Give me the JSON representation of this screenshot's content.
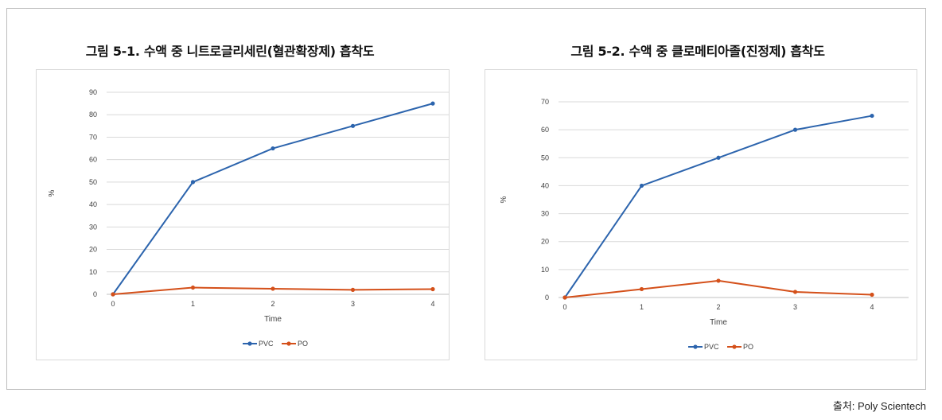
{
  "colors": {
    "pvc": "#2c64ad",
    "po": "#d4501a",
    "grid": "#d9d9d9",
    "axis": "#c0c0c0",
    "text": "#404040"
  },
  "source": "출처: Poly Scientech",
  "chart_data": [
    {
      "type": "line",
      "title": "그림 5-1. 수액 중 니트로글리세린(혈관확장제) 흡착도",
      "xlabel": "Time",
      "ylabel": "%",
      "x": [
        0,
        1,
        2,
        3,
        4
      ],
      "x_ticks": [
        "0",
        "1",
        "2",
        "3",
        "4"
      ],
      "ylim": [
        0,
        90
      ],
      "y_ticks": [
        "0",
        "10",
        "20",
        "30",
        "40",
        "50",
        "60",
        "70",
        "80",
        "90"
      ],
      "grid": true,
      "legend": "bottom",
      "series": [
        {
          "name": "PVC",
          "values": [
            0,
            50,
            65,
            75,
            85
          ]
        },
        {
          "name": "PO",
          "values": [
            0,
            3,
            2.5,
            2,
            2.3
          ]
        }
      ]
    },
    {
      "type": "line",
      "title": "그림 5-2. 수액 중 클로메티아졸(진정제) 흡착도",
      "xlabel": "Time",
      "ylabel": "%",
      "x": [
        0,
        1,
        2,
        3,
        4
      ],
      "x_ticks": [
        "0",
        "1",
        "2",
        "3",
        "4"
      ],
      "ylim": [
        0,
        70
      ],
      "y_ticks": [
        "0",
        "10",
        "20",
        "30",
        "40",
        "50",
        "60",
        "70"
      ],
      "grid": true,
      "legend": "bottom",
      "series": [
        {
          "name": "PVC",
          "values": [
            0,
            40,
            50,
            60,
            65
          ]
        },
        {
          "name": "PO",
          "values": [
            0,
            3,
            6,
            2,
            1
          ]
        }
      ]
    }
  ]
}
